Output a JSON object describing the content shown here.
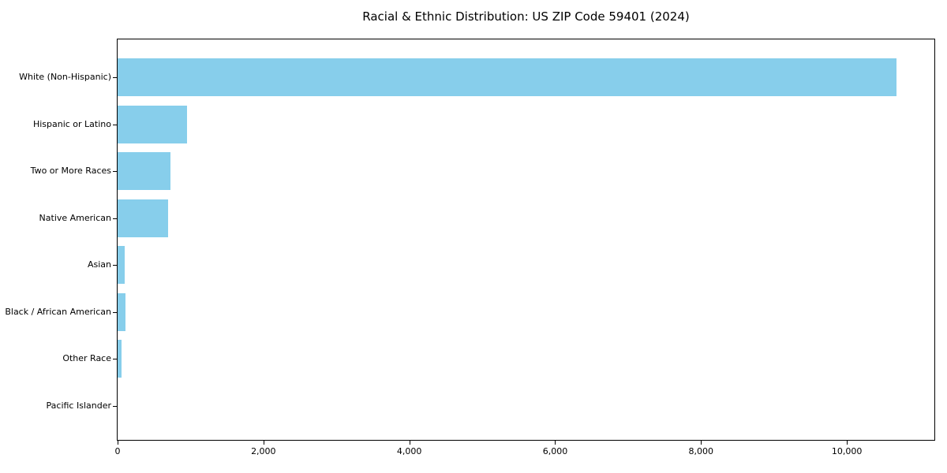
{
  "chart_data": {
    "type": "bar",
    "orientation": "horizontal",
    "title": "Racial & Ethnic Distribution: US ZIP Code 59401 (2024)",
    "categories": [
      "White (Non-Hispanic)",
      "Hispanic or Latino",
      "Two or More Races",
      "Native American",
      "Asian",
      "Black / African American",
      "Other Race",
      "Pacific Islander"
    ],
    "values": [
      10685,
      950,
      720,
      690,
      95,
      110,
      50,
      5
    ],
    "xlabel": "",
    "ylabel": "",
    "xlim": [
      0,
      11200
    ],
    "x_ticks": [
      0,
      2000,
      4000,
      6000,
      8000,
      10000
    ],
    "x_tick_labels": [
      "0",
      "2,000",
      "4,000",
      "6,000",
      "8,000",
      "10,000"
    ],
    "bar_color": "#87CEEB",
    "text_color": "#000000",
    "spine_color": "#000000",
    "background": "#FFFFFF",
    "grid": false,
    "legend": null
  }
}
